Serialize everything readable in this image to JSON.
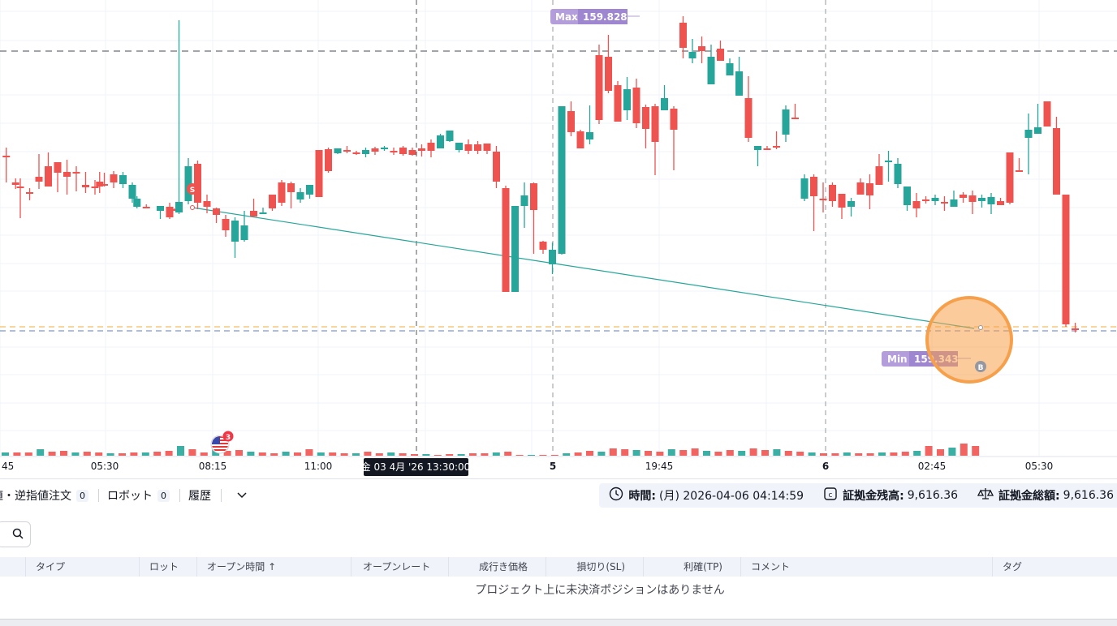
{
  "chart": {
    "colors": {
      "up": "#26a69a",
      "down": "#ef5350",
      "grid": "#f0f3fa",
      "marker": "#b39ddb",
      "highlight": "#f7a04b"
    },
    "max_label": "Max",
    "max_value": "159.828",
    "min_label": "Min",
    "min_value": "159.343",
    "sell_badge": "S",
    "buy_badge": "B",
    "event_count": "3",
    "event_icon": "us-flag-icon",
    "crosshair_label": "金 03 4月 '26 13:30:00",
    "x_ticks": [
      {
        "label": "45",
        "bold": false
      },
      {
        "label": "05:30",
        "bold": false
      },
      {
        "label": "08:15",
        "bold": false
      },
      {
        "label": "11:00",
        "bold": false
      },
      {
        "label": "5",
        "bold": true
      },
      {
        "label": "19:45",
        "bold": false
      },
      {
        "label": "6",
        "bold": true
      },
      {
        "label": "02:45",
        "bold": false
      },
      {
        "label": "05:30",
        "bold": false
      }
    ],
    "candles": [
      [
        1,
        192,
        192,
        225,
        182
      ],
      [
        3,
        225,
        228,
        233,
        220
      ],
      [
        4,
        230,
        231,
        269,
        220
      ],
      [
        6,
        237,
        239,
        247,
        232
      ],
      [
        8,
        218,
        224,
        233,
        190
      ],
      [
        10,
        205,
        230,
        225,
        188
      ],
      [
        12,
        200,
        213,
        237,
        200
      ],
      [
        14,
        212,
        218,
        240,
        197
      ],
      [
        16,
        212,
        214,
        236,
        205
      ],
      [
        18,
        228,
        231,
        238,
        212
      ],
      [
        20,
        230,
        232,
        240,
        222
      ],
      [
        21,
        224,
        230,
        238,
        212
      ],
      [
        22,
        227,
        227,
        230,
        213
      ],
      [
        24,
        215,
        225,
        232,
        211
      ],
      [
        26,
        227,
        216,
        232,
        212
      ],
      [
        28,
        245,
        228,
        250,
        225
      ],
      [
        29,
        255,
        245,
        257,
        242
      ],
      [
        31,
        255,
        256,
        257,
        252
      ],
      [
        34,
        260,
        254,
        270,
        254
      ],
      [
        36,
        255,
        268,
        270,
        250
      ],
      [
        37,
        258,
        260,
        259,
        257
      ],
      [
        38,
        262,
        249,
        264,
        25
      ],
      [
        40,
        248,
        205,
        252,
        195
      ],
      [
        42,
        202,
        250,
        258,
        198
      ],
      [
        44,
        248,
        255,
        263,
        240
      ],
      [
        46,
        257,
        265,
        275,
        256
      ],
      [
        48,
        270,
        284,
        292,
        265
      ],
      [
        50,
        298,
        272,
        318,
        268
      ],
      [
        52,
        296,
        278,
        298,
        260
      ],
      [
        54,
        260,
        267,
        266,
        245
      ],
      [
        56,
        263,
        262,
        262,
        256
      ],
      [
        58,
        240,
        257,
        260,
        240
      ],
      [
        60,
        225,
        250,
        254,
        222
      ],
      [
        62,
        226,
        237,
        257,
        224
      ],
      [
        64,
        246,
        237,
        250,
        232
      ],
      [
        66,
        240,
        228,
        245,
        228
      ],
      [
        68,
        185,
        243,
        243,
        205
      ],
      [
        70,
        184,
        211,
        213,
        182
      ],
      [
        72,
        189,
        183,
        190,
        183
      ],
      [
        74,
        185,
        185,
        189,
        180
      ],
      [
        76,
        188,
        190,
        191,
        186
      ],
      [
        78,
        190,
        185,
        194,
        182
      ],
      [
        80,
        183,
        187,
        191,
        181
      ],
      [
        82,
        184,
        182,
        186,
        180
      ],
      [
        84,
        186,
        187,
        191,
        182
      ],
      [
        86,
        182,
        190,
        192,
        180
      ],
      [
        88,
        185,
        191,
        192,
        182
      ],
      [
        90,
        183,
        186,
        193,
        178
      ],
      [
        92,
        176,
        186,
        194,
        172
      ],
      [
        94,
        183,
        167,
        183,
        165
      ],
      [
        96,
        174,
        161,
        175,
        162
      ],
      [
        98,
        185,
        176,
        188,
        177
      ],
      [
        100,
        178,
        186,
        190,
        172
      ],
      [
        102,
        178,
        186,
        190,
        174
      ],
      [
        104,
        177,
        186,
        190,
        177
      ],
      [
        106,
        187,
        224,
        232,
        180
      ],
      [
        108,
        232,
        360,
        360,
        229
      ],
      [
        110,
        360,
        254,
        360,
        258
      ],
      [
        112,
        254,
        241,
        281,
        225
      ],
      [
        114,
        226,
        259,
        313,
        225
      ],
      [
        116,
        298,
        308,
        313,
        297
      ],
      [
        118,
        326,
        308,
        338,
        299
      ],
      [
        120,
        313,
        131,
        134,
        314
      ],
      [
        122,
        137,
        163,
        168,
        125
      ],
      [
        124,
        162,
        183,
        166,
        160
      ],
      [
        126,
        172,
        163,
        178,
        130
      ],
      [
        128,
        68,
        148,
        153,
        55
      ],
      [
        130,
        70,
        112,
        115,
        43
      ],
      [
        132,
        105,
        150,
        119,
        100
      ],
      [
        134,
        136,
        110,
        148,
        95
      ],
      [
        136,
        108,
        152,
        158,
        97
      ],
      [
        138,
        132,
        159,
        183,
        129
      ],
      [
        140,
        131,
        175,
        216,
        128
      ],
      [
        142,
        136,
        121,
        127,
        105
      ],
      [
        144,
        134,
        160,
        210,
        131
      ],
      [
        146,
        28,
        59,
        72,
        20
      ],
      [
        148,
        72,
        64,
        78,
        48
      ],
      [
        150,
        57,
        63,
        78,
        45
      ],
      [
        152,
        104,
        70,
        100,
        55
      ],
      [
        154,
        60,
        75,
        75,
        50
      ],
      [
        156,
        93,
        78,
        79,
        72
      ],
      [
        158,
        118,
        88,
        92,
        70
      ],
      [
        160,
        121,
        170,
        175,
        94
      ],
      [
        162,
        185,
        180,
        205,
        180
      ],
      [
        164,
        183,
        185,
        185,
        180
      ],
      [
        166,
        180,
        180,
        184,
        162
      ],
      [
        168,
        166,
        135,
        175,
        130
      ],
      [
        170,
        145,
        145,
        147,
        128
      ],
      [
        172,
        245,
        220,
        248,
        215
      ],
      [
        174,
        218,
        242,
        285,
        215
      ],
      [
        176,
        245,
        246,
        262,
        225
      ],
      [
        178,
        228,
        248,
        255,
        225
      ],
      [
        180,
        239,
        256,
        270,
        245
      ],
      [
        182,
        255,
        248,
        267,
        244
      ],
      [
        184,
        225,
        240,
        240,
        220
      ],
      [
        186,
        226,
        241,
        258,
        215
      ],
      [
        188,
        205,
        228,
        228,
        190
      ],
      [
        190,
        199,
        198,
        224,
        186
      ],
      [
        192,
        227,
        202,
        232,
        195
      ],
      [
        194,
        253,
        230,
        260,
        230
      ],
      [
        196,
        248,
        257,
        268,
        238
      ],
      [
        198,
        246,
        248,
        251,
        242
      ],
      [
        200,
        248,
        244,
        253,
        240
      ],
      [
        202,
        249,
        249,
        260,
        242
      ],
      [
        204,
        255,
        246,
        252,
        235
      ],
      [
        206,
        240,
        244,
        250,
        237
      ],
      [
        208,
        241,
        249,
        264,
        235
      ],
      [
        210,
        248,
        244,
        256,
        240
      ],
      [
        212,
        252,
        243,
        264,
        238
      ],
      [
        214,
        248,
        253,
        253,
        244
      ],
      [
        216,
        188,
        250,
        252,
        190
      ],
      [
        218,
        210,
        210,
        212,
        195
      ],
      [
        220,
        170,
        160,
        215,
        140
      ],
      [
        222,
        165,
        157,
        157,
        128
      ],
      [
        224,
        125,
        156,
        150,
        140
      ],
      [
        226,
        158,
        240,
        240,
        144
      ],
      [
        228,
        240,
        400,
        403,
        240
      ],
      [
        230,
        405,
        407,
        410,
        398
      ]
    ],
    "volumes": [
      4,
      4,
      4,
      8,
      5,
      6,
      4,
      5,
      4,
      3,
      3,
      4,
      4,
      5,
      6,
      12,
      8,
      4,
      9,
      6,
      7,
      5,
      4,
      3,
      5,
      4,
      8,
      4,
      4,
      3,
      3,
      5,
      3,
      4,
      3,
      2,
      2,
      1,
      2,
      2,
      3,
      3,
      4,
      5,
      1,
      1,
      1,
      1,
      3,
      4,
      6,
      5,
      9,
      8,
      7,
      6,
      5,
      8,
      7,
      9,
      6,
      5,
      7,
      6,
      9,
      7,
      8,
      6,
      5,
      4,
      3,
      3,
      4,
      3,
      3,
      4,
      4,
      5,
      6,
      12,
      8,
      10,
      15,
      12
    ]
  },
  "panel": {
    "tabs": [
      {
        "label": "値・逆指値注文",
        "count": "0"
      },
      {
        "label": "ロボット",
        "count": "0"
      },
      {
        "label": "履歴",
        "count": ""
      }
    ],
    "more_icon": "chevron-down-icon",
    "info": [
      {
        "icon": "clock-icon",
        "label": "時間:",
        "value": "(月) 2026-04-06 04:14:59"
      },
      {
        "icon": "wallet-icon",
        "label": "証拠金残高:",
        "value": "9,616.36"
      },
      {
        "icon": "scale-icon",
        "label": "証拠金総額:",
        "value": "9,616.36"
      }
    ],
    "search_icon": "search-icon",
    "columns": [
      "タイプ",
      "ロット",
      "オープン時間 ↑",
      "オープンレート",
      "成行き価格",
      "損切り(SL)",
      "利確(TP)",
      "コメント",
      "タグ"
    ],
    "empty_message": "プロジェクト上に未決済ポジションはありません"
  }
}
